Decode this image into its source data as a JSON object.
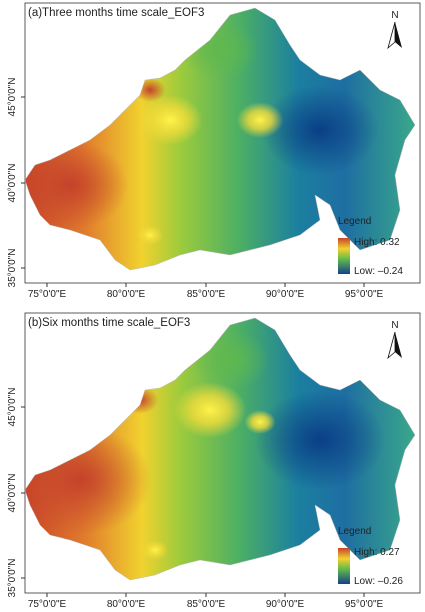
{
  "panels": [
    {
      "title": "(a)Three months time scale_EOF3",
      "legend": {
        "title": "Legend",
        "high": "High: 0.32",
        "low": "Low: –0.24"
      },
      "north": "N",
      "xticks": [
        "75°0'0\"E",
        "80°0'0\"E",
        "85°0'0\"E",
        "90°0'0\"E",
        "95°0'0\"E"
      ],
      "yticks": [
        "45°0'0\"N",
        "40°0'0\"N",
        "35°0'0\"N"
      ]
    },
    {
      "title": "(b)Six months time scale_EOF3",
      "legend": {
        "title": "Legend",
        "high": "High: 0.27",
        "low": "Low: –0.26"
      },
      "north": "N",
      "xticks": [
        "75°0'0\"E",
        "80°0'0\"E",
        "85°0'0\"E",
        "90°0'0\"E",
        "95°0'0\"E"
      ],
      "yticks": [
        "45°0'0\"N",
        "40°0'0\"N",
        "35°0'0\"N"
      ]
    }
  ]
}
